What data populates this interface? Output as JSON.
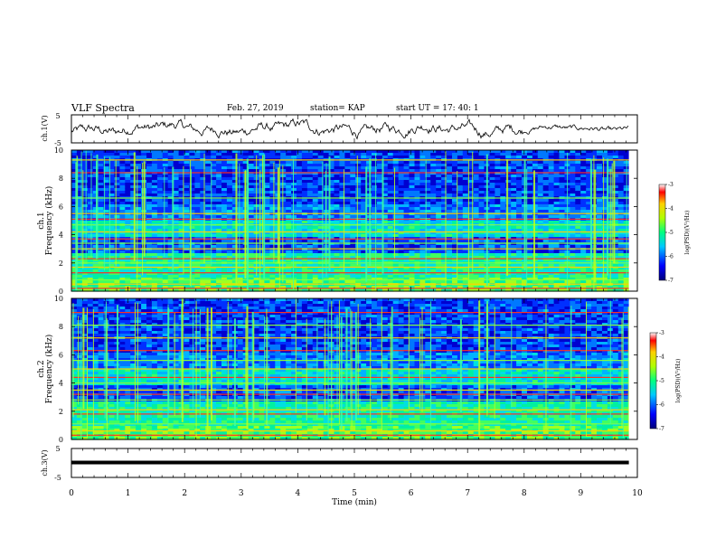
{
  "header": {
    "title": "VLF Spectra",
    "date": "Feb. 27, 2019",
    "station": "station= KAP",
    "start": "start  UT =   17: 40: 1"
  },
  "chart_data": [
    {
      "type": "line",
      "ylabel": "ch.1(V)",
      "ylim": [
        -5,
        5
      ],
      "yticks": [
        "5",
        "-5"
      ],
      "xlim": [
        0,
        10
      ],
      "description_series": "waveform"
    },
    {
      "type": "heatmap",
      "ylabel_line1": "ch.1",
      "ylabel_line2": "Frequency (kHz)",
      "ylim": [
        0,
        10
      ],
      "yticks": [
        "0",
        "2",
        "4",
        "6",
        "8",
        "10"
      ],
      "xlim": [
        0,
        10
      ],
      "colorbar": {
        "label": "log(PSD)(V²/Hz)",
        "range": [
          -7,
          -3
        ],
        "ticks": [
          "-3",
          "-4",
          "-5",
          "-6",
          "-7"
        ]
      },
      "bands_khz": [
        0.2,
        0.5,
        0.8,
        1.3,
        1.7,
        2.0,
        2.3,
        3.0,
        3.4,
        3.7,
        4.2,
        4.7,
        5.1,
        5.5,
        6.6,
        8.4,
        9.3
      ],
      "data_end_min": 9.85
    },
    {
      "type": "heatmap",
      "ylabel_line1": "ch.2",
      "ylabel_line2": "Frequency (kHz)",
      "ylim": [
        0,
        10
      ],
      "yticks": [
        "0",
        "2",
        "4",
        "6",
        "8",
        "10"
      ],
      "xlim": [
        0,
        10
      ],
      "colorbar": {
        "label": "log(PSD)(V²/Hz)",
        "range": [
          -7,
          -3
        ],
        "ticks": [
          "-3",
          "-4",
          "-5",
          "-6",
          "-7"
        ]
      },
      "bands_khz": [
        0.3,
        0.6,
        1.1,
        1.8,
        2.1,
        2.8,
        3.2,
        3.5,
        4.0,
        4.4,
        5.0,
        5.6,
        6.3,
        7.2,
        8.1,
        9.0
      ],
      "data_end_min": 9.85
    },
    {
      "type": "line",
      "ylabel": "ch.3(V)",
      "ylim": [
        -5,
        5
      ],
      "yticks": [
        "5",
        "-5"
      ],
      "xlim": [
        0,
        10
      ],
      "xlabel": "Time  (min)",
      "xticks": [
        "0",
        "1",
        "2",
        "3",
        "4",
        "5",
        "6",
        "7",
        "8",
        "9",
        "10"
      ],
      "constant_value": 0
    }
  ],
  "colors": {
    "spectrum_low": "#0000a0",
    "spectrum_high": "#ff0000"
  }
}
